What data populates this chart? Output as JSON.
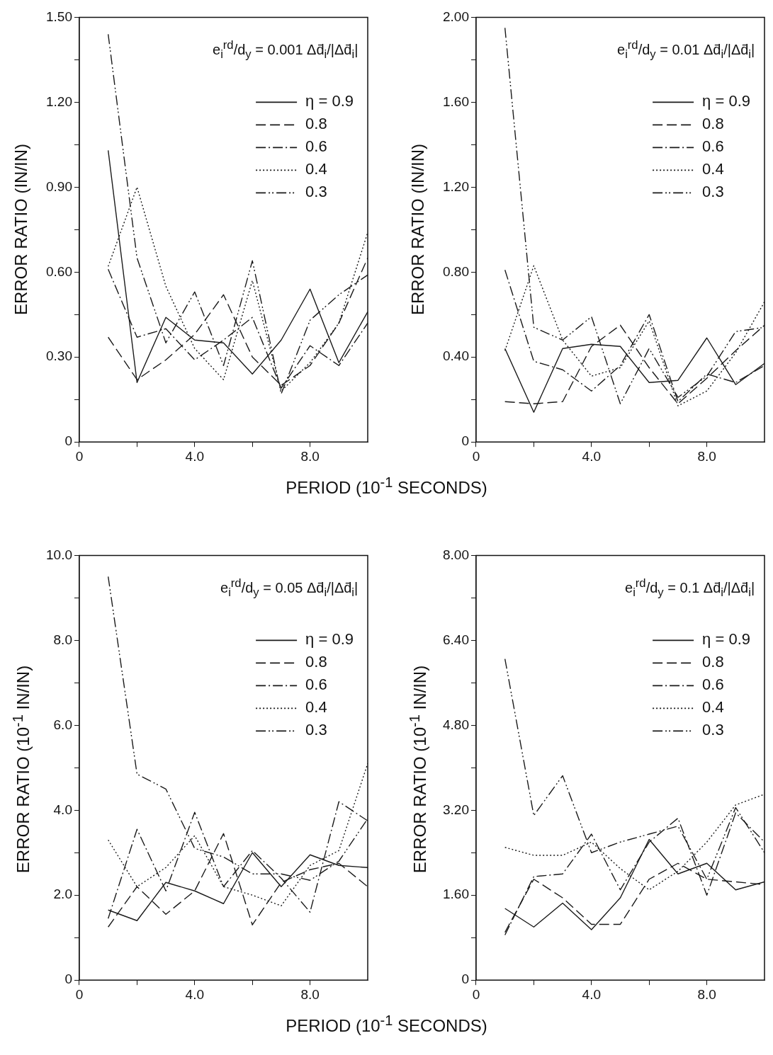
{
  "chart_data": [
    {
      "type": "line",
      "annotations": [
        "e$_{i}$$^{rd}$/d$_{y}$ = 0.001 Δd̄$_{i}$/|Δd̄$_{i}$|"
      ],
      "ylabel": "ERROR RATIO (IN/IN)",
      "xlabel": "PERIOD (10$^{-1}$ SECONDS)",
      "legend": "top right",
      "grid": false,
      "marker": "none",
      "x": [
        1,
        2,
        3,
        4,
        5,
        6,
        7,
        8,
        9,
        10
      ],
      "xlim": [
        0,
        10
      ],
      "xticks": [
        {
          "value": 0,
          "label": "0"
        },
        {
          "value": 2,
          "label": null
        },
        {
          "value": 4,
          "label": "4.0"
        },
        {
          "value": 6,
          "label": null
        },
        {
          "value": 8,
          "label": "8.0"
        }
      ],
      "ylim": [
        0,
        1.5
      ],
      "yticks": [
        {
          "value": 0,
          "label": "0"
        },
        {
          "value": 0.15,
          "label": null
        },
        {
          "value": 0.3,
          "label": "0.30"
        },
        {
          "value": 0.45,
          "label": null
        },
        {
          "value": 0.6,
          "label": "0.60"
        },
        {
          "value": 0.75,
          "label": null
        },
        {
          "value": 0.9,
          "label": "0.90"
        },
        {
          "value": 1.05,
          "label": null
        },
        {
          "value": 1.2,
          "label": "1.20"
        },
        {
          "value": 1.35,
          "label": null
        },
        {
          "value": 1.5,
          "label": "1.50"
        }
      ],
      "series": [
        {
          "name": "η = 0.9",
          "color": "#1a1a1a",
          "line_style": "solid",
          "values": [
            1.03,
            0.21,
            0.44,
            0.36,
            0.35,
            0.24,
            0.36,
            0.54,
            0.28,
            0.46
          ]
        },
        {
          "name": "0.8",
          "color": "#1a1a1a",
          "line_style": "dashed",
          "values": [
            0.37,
            0.22,
            0.29,
            0.38,
            0.52,
            0.3,
            0.2,
            0.27,
            0.42,
            0.65
          ]
        },
        {
          "name": "0.6",
          "color": "#1a1a1a",
          "line_style": "dashdot",
          "values": [
            0.61,
            0.37,
            0.4,
            0.29,
            0.36,
            0.44,
            0.19,
            0.34,
            0.27,
            0.42
          ]
        },
        {
          "name": "0.4",
          "color": "#1a1a1a",
          "line_style": "dotted",
          "values": [
            0.62,
            0.9,
            0.55,
            0.33,
            0.22,
            0.57,
            0.18,
            0.28,
            0.42,
            0.74
          ]
        },
        {
          "name": "0.3",
          "color": "#1a1a1a",
          "line_style": "dashdotdot",
          "values": [
            1.44,
            0.65,
            0.35,
            0.53,
            0.27,
            0.64,
            0.17,
            0.43,
            0.52,
            0.59
          ]
        }
      ]
    },
    {
      "type": "line",
      "annotations": [
        "e$_{i}$$^{rd}$/d$_{y}$ = 0.01 Δd̄$_{i}$/|Δd̄$_{i}$|"
      ],
      "ylabel": "ERROR RATIO (IN/IN)",
      "legend": "top right",
      "grid": false,
      "marker": "none",
      "x": [
        1,
        2,
        3,
        4,
        5,
        6,
        7,
        8,
        9,
        10
      ],
      "xlim": [
        0,
        10
      ],
      "xticks": [
        {
          "value": 0,
          "label": "0"
        },
        {
          "value": 2,
          "label": null
        },
        {
          "value": 4,
          "label": "4.0"
        },
        {
          "value": 6,
          "label": null
        },
        {
          "value": 8,
          "label": "8.0"
        }
      ],
      "ylim": [
        0,
        2
      ],
      "yticks": [
        {
          "value": 0,
          "label": "0"
        },
        {
          "value": 0.2,
          "label": null
        },
        {
          "value": 0.4,
          "label": "0.40"
        },
        {
          "value": 0.6,
          "label": null
        },
        {
          "value": 0.8,
          "label": "0.80"
        },
        {
          "value": 1,
          "label": null
        },
        {
          "value": 1.2,
          "label": "1.20"
        },
        {
          "value": 1.4,
          "label": null
        },
        {
          "value": 1.6,
          "label": "1.60"
        },
        {
          "value": 1.8,
          "label": null
        },
        {
          "value": 2,
          "label": "2.00"
        }
      ],
      "series": [
        {
          "name": "η = 0.9",
          "color": "#1a1a1a",
          "line_style": "solid",
          "values": [
            0.44,
            0.14,
            0.44,
            0.46,
            0.45,
            0.28,
            0.29,
            0.49,
            0.27,
            0.37
          ]
        },
        {
          "name": "0.8",
          "color": "#1a1a1a",
          "line_style": "dashed",
          "values": [
            0.19,
            0.18,
            0.19,
            0.45,
            0.55,
            0.35,
            0.18,
            0.3,
            0.43,
            0.55
          ]
        },
        {
          "name": "0.6",
          "color": "#1a1a1a",
          "line_style": "dashdot",
          "values": [
            0.81,
            0.38,
            0.34,
            0.24,
            0.36,
            0.6,
            0.19,
            0.32,
            0.28,
            0.36
          ]
        },
        {
          "name": "0.4",
          "color": "#1a1a1a",
          "line_style": "dotted",
          "values": [
            0.43,
            0.83,
            0.48,
            0.31,
            0.35,
            0.57,
            0.17,
            0.24,
            0.42,
            0.66
          ]
        },
        {
          "name": "0.3",
          "color": "#1a1a1a",
          "line_style": "dashdotdot",
          "values": [
            1.95,
            0.54,
            0.48,
            0.59,
            0.18,
            0.44,
            0.21,
            0.31,
            0.52,
            0.54
          ]
        }
      ]
    },
    {
      "type": "line",
      "annotations": [
        "e$_{i}$$^{rd}$/d$_{y}$ = 0.05 Δd̄$_{i}$/|Δd̄$_{i}$|"
      ],
      "ylabel": "ERROR RATIO (10$^{-1}$ IN/IN)",
      "xlabel": "PERIOD (10$^{-1}$ SECONDS)",
      "legend": "top right",
      "grid": false,
      "marker": "none",
      "x": [
        1,
        2,
        3,
        4,
        5,
        6,
        7,
        8,
        9,
        10
      ],
      "xlim": [
        0,
        10
      ],
      "xticks": [
        {
          "value": 0,
          "label": "0"
        },
        {
          "value": 2,
          "label": null
        },
        {
          "value": 4,
          "label": "4.0"
        },
        {
          "value": 6,
          "label": null
        },
        {
          "value": 8,
          "label": "8.0"
        }
      ],
      "ylim": [
        0,
        10
      ],
      "yticks": [
        {
          "value": 0,
          "label": "0"
        },
        {
          "value": 1,
          "label": null
        },
        {
          "value": 2,
          "label": "2.0"
        },
        {
          "value": 3,
          "label": null
        },
        {
          "value": 4,
          "label": "4.0"
        },
        {
          "value": 5,
          "label": null
        },
        {
          "value": 6,
          "label": "6.0"
        },
        {
          "value": 7,
          "label": null
        },
        {
          "value": 8,
          "label": "8.0"
        },
        {
          "value": 9,
          "label": null
        },
        {
          "value": 10,
          "label": "10.0"
        }
      ],
      "series": [
        {
          "name": "η = 0.9",
          "color": "#1a1a1a",
          "line_style": "solid",
          "values": [
            1.65,
            1.4,
            2.3,
            2.1,
            1.8,
            3,
            2.2,
            2.95,
            2.7,
            2.65
          ]
        },
        {
          "name": "0.8",
          "color": "#1a1a1a",
          "line_style": "dashed",
          "values": [
            1.25,
            2.2,
            1.55,
            2.1,
            3.45,
            1.3,
            2.3,
            2.6,
            2.75,
            2.2
          ]
        },
        {
          "name": "0.6",
          "color": "#1a1a1a",
          "line_style": "dashdot",
          "values": [
            1.45,
            3.55,
            2.1,
            3.95,
            2.2,
            3.05,
            2.4,
            1.6,
            4.2,
            3.75
          ]
        },
        {
          "name": "0.4",
          "color": "#1a1a1a",
          "line_style": "dotted",
          "values": [
            3.3,
            2.2,
            2.65,
            3.4,
            2.2,
            2,
            1.75,
            2.7,
            3.05,
            5.1
          ]
        },
        {
          "name": "0.3",
          "color": "#1a1a1a",
          "line_style": "dashdotdot",
          "values": [
            9.5,
            4.85,
            4.5,
            3.1,
            2.9,
            2.5,
            2.5,
            2.35,
            2.8,
            3.8
          ]
        }
      ]
    },
    {
      "type": "line",
      "annotations": [
        "e$_{i}$$^{rd}$/d$_{y}$ = 0.1 Δd̄$_{i}$/|Δd̄$_{i}$|"
      ],
      "ylabel": "ERROR RATIO (10$^{-1}$ IN/IN)",
      "legend": "top right",
      "grid": false,
      "marker": "none",
      "x": [
        1,
        2,
        3,
        4,
        5,
        6,
        7,
        8,
        9,
        10
      ],
      "xlim": [
        0,
        10
      ],
      "xticks": [
        {
          "value": 0,
          "label": "0"
        },
        {
          "value": 2,
          "label": null
        },
        {
          "value": 4,
          "label": "4.0"
        },
        {
          "value": 6,
          "label": null
        },
        {
          "value": 8,
          "label": "8.0"
        }
      ],
      "ylim": [
        0,
        8
      ],
      "yticks": [
        {
          "value": 0,
          "label": "0"
        },
        {
          "value": 0.8,
          "label": null
        },
        {
          "value": 1.6,
          "label": "1.60"
        },
        {
          "value": 2.4,
          "label": null
        },
        {
          "value": 3.2,
          "label": "3.20"
        },
        {
          "value": 4,
          "label": null
        },
        {
          "value": 4.8,
          "label": "4.80"
        },
        {
          "value": 5.6,
          "label": null
        },
        {
          "value": 6.4,
          "label": "6.40"
        },
        {
          "value": 7.2,
          "label": null
        },
        {
          "value": 8,
          "label": "8.00"
        }
      ],
      "series": [
        {
          "name": "η = 0.9",
          "color": "#1a1a1a",
          "line_style": "solid",
          "values": [
            1.35,
            1,
            1.45,
            0.95,
            1.55,
            2.65,
            2,
            2.2,
            1.7,
            1.85
          ]
        },
        {
          "name": "0.8",
          "color": "#1a1a1a",
          "line_style": "dashed",
          "values": [
            0.9,
            1.9,
            1.55,
            1.05,
            1.05,
            1.9,
            2.2,
            1.9,
            1.85,
            1.8
          ]
        },
        {
          "name": "0.6",
          "color": "#1a1a1a",
          "line_style": "dashdot",
          "values": [
            0.85,
            1.95,
            2,
            2.75,
            1.7,
            2.6,
            3.05,
            1.6,
            3.15,
            2.6
          ]
        },
        {
          "name": "0.4",
          "color": "#1a1a1a",
          "line_style": "dotted",
          "values": [
            2.5,
            2.35,
            2.35,
            2.6,
            2.1,
            1.7,
            2.05,
            2.6,
            3.3,
            3.5
          ]
        },
        {
          "name": "0.3",
          "color": "#1a1a1a",
          "line_style": "dashdotdot",
          "values": [
            6.05,
            3.1,
            3.85,
            2.4,
            2.6,
            2.75,
            2.9,
            1.9,
            3.25,
            2.4
          ]
        }
      ]
    }
  ]
}
